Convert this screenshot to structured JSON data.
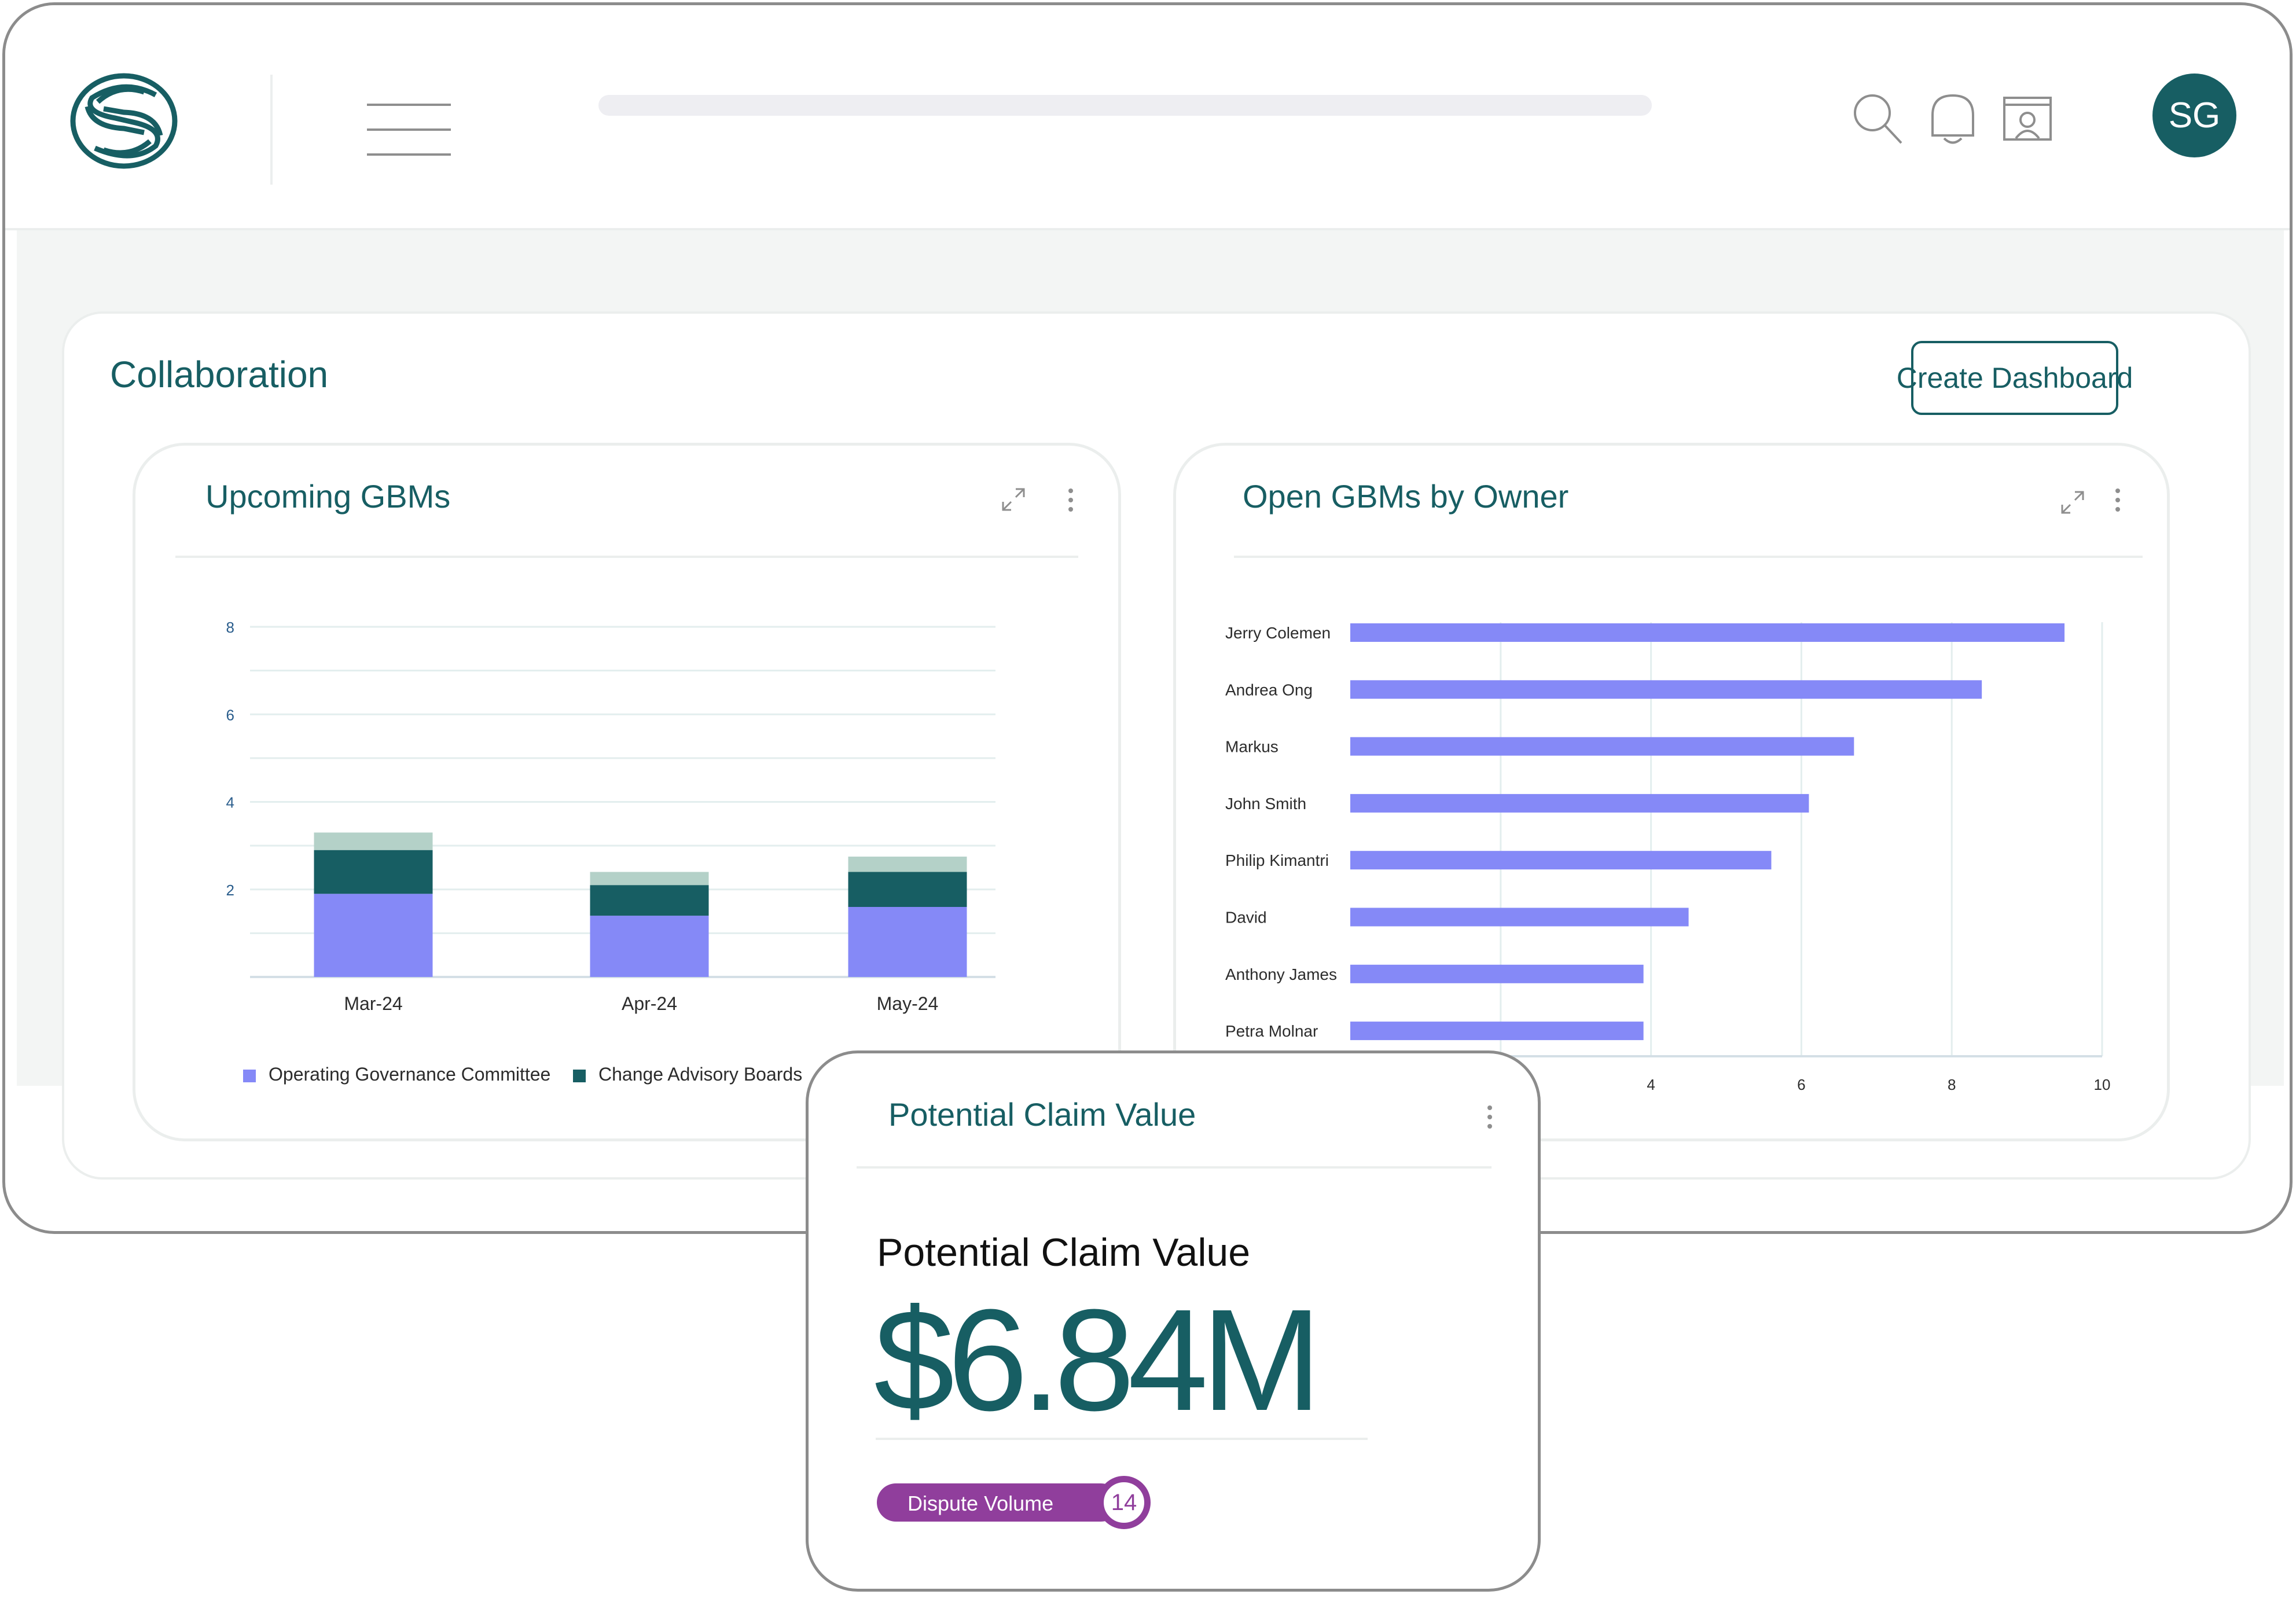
{
  "header": {
    "user_initials": "SG",
    "icons": [
      "logo-icon",
      "menu-icon",
      "search-icon",
      "bell-icon",
      "profile-window-icon"
    ]
  },
  "section": {
    "title": "Collaboration",
    "create_button_label": "Create Dashboard"
  },
  "panels": {
    "upcoming": {
      "title": "Upcoming GBMs"
    },
    "owners": {
      "title": "Open GBMs by Owner"
    },
    "claim": {
      "title": "Potential Claim Value"
    }
  },
  "claim": {
    "subtitle": "Potential Claim Value",
    "value": "$6.84M",
    "badge_label": "Dispute Volume",
    "badge_count": "14"
  },
  "colors": {
    "accent": "#175e63",
    "operating_governance": "#8589f7",
    "change_advisory": "#175e63",
    "other_series": "#b4d1c8",
    "badge": "#903e9c"
  },
  "chart_data": [
    {
      "type": "bar",
      "stacked": true,
      "orientation": "vertical",
      "categories": [
        "Mar-24",
        "Apr-24",
        "May-24"
      ],
      "y_ticks": [
        2,
        4,
        6,
        8
      ],
      "ylim": [
        0,
        8
      ],
      "grid": true,
      "legend_position": "bottom",
      "series": [
        {
          "name": "Operating Governance Committee",
          "values": [
            1.9,
            1.4,
            1.6
          ]
        },
        {
          "name": "Change Advisory Boards",
          "values": [
            1.0,
            0.7,
            0.8
          ]
        },
        {
          "values": [
            0.4,
            0.3,
            0.35
          ]
        }
      ]
    },
    {
      "type": "bar",
      "orientation": "horizontal",
      "categories": [
        "Jerry Colemen",
        "Andrea Ong",
        "Markus",
        "John Smith",
        "Philip Kimantri",
        "David",
        "Anthony James",
        "Petra Molnar"
      ],
      "values": [
        9.5,
        8.4,
        6.7,
        6.1,
        5.6,
        4.5,
        3.9,
        3.9
      ],
      "x_ticks": [
        4,
        6,
        8,
        10
      ],
      "xlim": [
        0,
        10
      ],
      "grid": true
    }
  ]
}
